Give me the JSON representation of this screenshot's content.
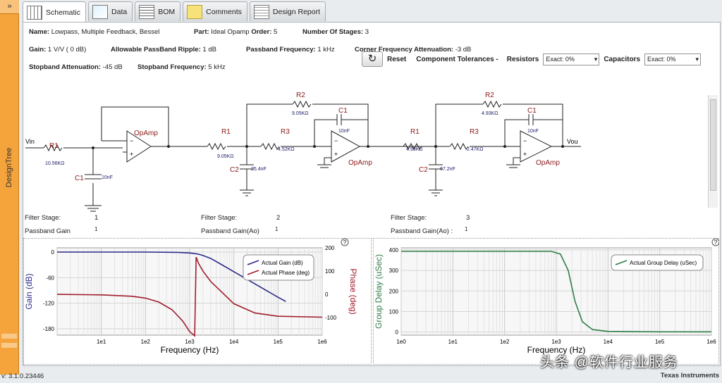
{
  "sidebar": {
    "label": "DesignTree",
    "collapse_glyph": "»"
  },
  "tabs": [
    {
      "label": "Schematic",
      "active": true
    },
    {
      "label": "Data"
    },
    {
      "label": "BOM"
    },
    {
      "label": "Comments"
    },
    {
      "label": "Design Report"
    }
  ],
  "params": {
    "name_label": "Name:",
    "name": "Lowpass, Multiple Feedback, Bessel",
    "part_label": "Part:",
    "part": "Ideal Opamp",
    "order_label": "Order:",
    "order": "5",
    "stages_label": "Number Of Stages:",
    "stages": "3",
    "gain_label": "Gain:",
    "gain": "1 V/V ( 0 dB)",
    "ripple_label": "Allowable PassBand Ripple:",
    "ripple": "1 dB",
    "pbfreq_label": "Passband Frequency:",
    "pbfreq": "1 kHz",
    "cfa_label": "Corner Frequency Attenuation:",
    "cfa": "-3 dB",
    "sba_label": "Stopband Attenuation:",
    "sba": "-45 dB",
    "sbf_label": "Stopband Frequency:",
    "sbf": "5 kHz"
  },
  "toolbar": {
    "reset": "Reset",
    "tolerances": "Component Tolerances -",
    "resistors": "Resistors",
    "resistors_value": "Exact: 0%",
    "capacitors": "Capacitors",
    "capacitors_value": "Exact: 0%",
    "reset_glyph": "↻"
  },
  "schematic": {
    "vin": "Vin",
    "vout": "Vou",
    "opamp": "OpAmp",
    "plus": "+",
    "minus": "−",
    "s1": {
      "R1": "R1",
      "R1v": "10.56KΩ",
      "C1": "C1",
      "C1v": "10nF"
    },
    "s2": {
      "R1": "R1",
      "R1v": "9.05KΩ",
      "R2": "R2",
      "R2v": "9.05KΩ",
      "R3": "R3",
      "R3v": "4.52KΩ",
      "C1": "C1",
      "C1v": "10nF",
      "C2": "C2",
      "C2v": "25.4nF"
    },
    "s3": {
      "R1": "R1",
      "R1v": "4.93KΩ",
      "R2": "R2",
      "R2v": "4.93KΩ",
      "R3": "R3",
      "R3v": "2.47KΩ",
      "C1": "C1",
      "C1v": "10nF",
      "C2": "C2",
      "C2v": "67.2nF"
    }
  },
  "stages": [
    {
      "label": "Filter Stage:",
      "num": "1",
      "gain_label": "Passband Gain",
      "gain": "1"
    },
    {
      "label": "Filter Stage:",
      "num": "2",
      "gain_label": "Passband Gain(Ao)",
      "gain": "1"
    },
    {
      "label": "Filter Stage:",
      "num": "3",
      "gain_label": "Passband Gain(Ao) :",
      "gain": "1"
    }
  ],
  "colors": {
    "gain": "#2a2a8a",
    "phase": "#a01c2c",
    "delay": "#2e7d46"
  },
  "chart_data": [
    {
      "type": "line",
      "xlabel": "Frequency (Hz)",
      "ylabel": "Gain (dB)",
      "y2label": "Phase (deg)",
      "xscale": "log",
      "xlim": [
        1,
        1000000
      ],
      "xticks": [
        "1e1",
        "1e2",
        "1e3",
        "1e4",
        "1e5",
        "1e6"
      ],
      "yticks": [
        "0",
        "-60",
        "-120",
        "-180"
      ],
      "y2ticks": [
        "200",
        "100",
        "0",
        "-100"
      ],
      "ylim": [
        -195,
        10
      ],
      "y2lim": [
        -175,
        200
      ],
      "legend": "top-right",
      "series": [
        {
          "name": "Actual Gain (dB)",
          "axis": "left",
          "x": [
            1,
            10,
            100,
            500,
            1000,
            1300,
            1600,
            2000,
            3000,
            5000,
            10000,
            20000,
            50000,
            100000,
            150000
          ],
          "y": [
            0,
            0,
            0,
            -0.5,
            -2,
            -3.5,
            -5,
            -8,
            -15,
            -28,
            -46,
            -64,
            -88,
            -106,
            -116
          ]
        },
        {
          "name": "Actual Phase (deg)",
          "axis": "right",
          "x": [
            1,
            10,
            50,
            100,
            200,
            400,
            700,
            1000,
            1300,
            1400,
            1600,
            2000,
            3000,
            5000,
            10000,
            30000,
            100000,
            1000000
          ],
          "y": [
            0,
            -2,
            -8,
            -16,
            -33,
            -66,
            -115,
            -160,
            -178,
            160,
            132,
            100,
            55,
            15,
            -40,
            -80,
            -94,
            -98
          ]
        }
      ]
    },
    {
      "type": "line",
      "xlabel": "Frequency (Hz)",
      "ylabel": "Group Delay (uSec)",
      "xscale": "log",
      "xlim": [
        1,
        1000000
      ],
      "xticks": [
        "1e0",
        "1e1",
        "1e2",
        "1e3",
        "1e4",
        "1e5",
        "1e6"
      ],
      "yticks": [
        "400",
        "300",
        "200",
        "100",
        "0"
      ],
      "ylim": [
        -15,
        410
      ],
      "legend": "top-right",
      "series": [
        {
          "name": "Actual Group Delay (uSec)",
          "x": [
            1,
            10,
            100,
            800,
            1200,
            1700,
            2300,
            3200,
            5000,
            10000,
            100000,
            1000000
          ],
          "y": [
            393,
            393,
            393,
            393,
            380,
            300,
            150,
            50,
            12,
            3,
            1,
            1
          ]
        }
      ]
    }
  ],
  "footer": {
    "version": "v: 3.1.0.23446",
    "brand": "Texas Instruments",
    "help": "?"
  },
  "watermark": "头条 @软件行业服务"
}
